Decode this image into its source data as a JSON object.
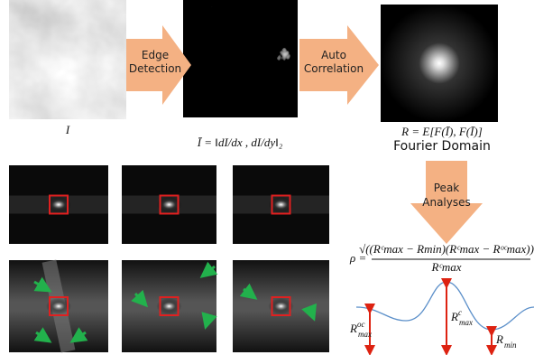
{
  "steps": {
    "edge_detection": [
      "Edge",
      "Detection"
    ],
    "auto_correlation": [
      "Auto",
      "Correlation"
    ],
    "peak_analyses": [
      "Peak",
      "Analyses"
    ]
  },
  "captions": {
    "input": "I",
    "gradient": "Ī = ‖dI/dx , dI/dy‖₂",
    "autocorr": "R = E[F(Ī), F(Ī)]",
    "domain": "Fourier Domain"
  },
  "formula": {
    "lhs": "ρ =",
    "numerator": "√((Rᶜmax − Rmin)(Rᶜmax − Rᵒᶜmax))",
    "denominator": "Rᶜmax"
  },
  "curve_labels": [
    {
      "base": "R",
      "sup": "oc",
      "sub": "max"
    },
    {
      "base": "R",
      "sup": "c",
      "sub": "max"
    },
    {
      "base": "R",
      "sup": "",
      "sub": "min"
    }
  ]
}
